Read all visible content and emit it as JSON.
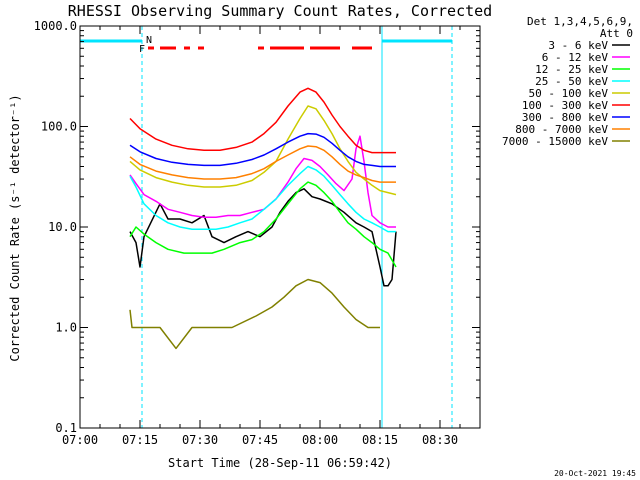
{
  "chart_data": {
    "type": "line",
    "title": "RHESSI Observing Summary Count Rates, Corrected",
    "xlabel": "Start Time (28-Sep-11 06:59:42)",
    "ylabel": "Corrected Count Rate (s⁻¹ detector⁻¹)",
    "x_unit": "minutes after 07:00",
    "xlim": [
      0,
      100
    ],
    "ylim": [
      0.1,
      1000
    ],
    "yscale": "log",
    "x_ticks": [
      {
        "t": 0,
        "label": "07:00"
      },
      {
        "t": 15,
        "label": "07:15"
      },
      {
        "t": 30,
        "label": "07:30"
      },
      {
        "t": 45,
        "label": "07:45"
      },
      {
        "t": 60,
        "label": "08:00"
      },
      {
        "t": 75,
        "label": "08:15"
      },
      {
        "t": 90,
        "label": "08:30"
      }
    ],
    "y_ticks": [
      {
        "v": 1000,
        "label": "1000.0"
      },
      {
        "v": 100,
        "label": "100.0"
      },
      {
        "v": 10,
        "label": "10.0"
      },
      {
        "v": 1,
        "label": "1.0"
      },
      {
        "v": 0.1,
        "label": "0.1"
      }
    ],
    "legend_header": [
      "Det 1,3,4,5,6,9,",
      "Att 0"
    ],
    "legend_position": "right",
    "series": [
      {
        "name": "3 - 6 keV",
        "color": "#000000",
        "points": [
          [
            12.5,
            9
          ],
          [
            14,
            7
          ],
          [
            15,
            4
          ],
          [
            16,
            8
          ],
          [
            20,
            17
          ],
          [
            22,
            12
          ],
          [
            25,
            12
          ],
          [
            28,
            11
          ],
          [
            31,
            13
          ],
          [
            33,
            8
          ],
          [
            36,
            7
          ],
          [
            39,
            8
          ],
          [
            42,
            9
          ],
          [
            45,
            8
          ],
          [
            48,
            10
          ],
          [
            50,
            14
          ],
          [
            52,
            18
          ],
          [
            54,
            22
          ],
          [
            56,
            24
          ],
          [
            58,
            20
          ],
          [
            60,
            19
          ],
          [
            63,
            17
          ],
          [
            66,
            14
          ],
          [
            69,
            11
          ],
          [
            71,
            10
          ],
          [
            73,
            9
          ],
          [
            75,
            4
          ],
          [
            76,
            2.6
          ],
          [
            77,
            2.6
          ],
          [
            78,
            3
          ],
          [
            79,
            9
          ]
        ]
      },
      {
        "name": "6 - 12 keV",
        "color": "#ff00ff",
        "points": [
          [
            12.5,
            33
          ],
          [
            14,
            27
          ],
          [
            16,
            21
          ],
          [
            19,
            18
          ],
          [
            22,
            15
          ],
          [
            25,
            14
          ],
          [
            28,
            13
          ],
          [
            31,
            12.5
          ],
          [
            34,
            12.5
          ],
          [
            37,
            13
          ],
          [
            40,
            13
          ],
          [
            43,
            14
          ],
          [
            46,
            15
          ],
          [
            49,
            19
          ],
          [
            52,
            28
          ],
          [
            54,
            38
          ],
          [
            56,
            48
          ],
          [
            58,
            46
          ],
          [
            60,
            40
          ],
          [
            62,
            33
          ],
          [
            64,
            27
          ],
          [
            66,
            23
          ],
          [
            68,
            30
          ],
          [
            69,
            60
          ],
          [
            70,
            80
          ],
          [
            71,
            45
          ],
          [
            72,
            22
          ],
          [
            73,
            13
          ],
          [
            75,
            11
          ],
          [
            77,
            10
          ],
          [
            79,
            10
          ]
        ]
      },
      {
        "name": "12 - 25 keV",
        "color": "#00ff00",
        "points": [
          [
            12.5,
            8
          ],
          [
            14,
            10
          ],
          [
            16,
            8.5
          ],
          [
            19,
            7
          ],
          [
            22,
            6
          ],
          [
            26,
            5.5
          ],
          [
            30,
            5.5
          ],
          [
            33,
            5.5
          ],
          [
            36,
            6
          ],
          [
            40,
            7
          ],
          [
            43,
            7.5
          ],
          [
            46,
            9
          ],
          [
            49,
            12
          ],
          [
            52,
            17
          ],
          [
            55,
            24
          ],
          [
            57,
            28
          ],
          [
            59,
            26
          ],
          [
            61,
            22
          ],
          [
            63,
            18
          ],
          [
            65,
            14
          ],
          [
            67,
            11
          ],
          [
            69,
            9.5
          ],
          [
            71,
            8
          ],
          [
            73,
            7
          ],
          [
            75,
            6
          ],
          [
            77,
            5.5
          ],
          [
            79,
            4
          ]
        ]
      },
      {
        "name": "25 - 50 keV",
        "color": "#00ffff",
        "points": [
          [
            12.5,
            32
          ],
          [
            14,
            25
          ],
          [
            16,
            17
          ],
          [
            19,
            13
          ],
          [
            22,
            11
          ],
          [
            25,
            10
          ],
          [
            28,
            9.5
          ],
          [
            31,
            9.5
          ],
          [
            34,
            9.5
          ],
          [
            37,
            10
          ],
          [
            40,
            11
          ],
          [
            43,
            12
          ],
          [
            46,
            15
          ],
          [
            49,
            19
          ],
          [
            52,
            26
          ],
          [
            55,
            34
          ],
          [
            57,
            40
          ],
          [
            59,
            37
          ],
          [
            61,
            32
          ],
          [
            63,
            26
          ],
          [
            65,
            21
          ],
          [
            67,
            17
          ],
          [
            69,
            14
          ],
          [
            71,
            12
          ],
          [
            73,
            11
          ],
          [
            75,
            10
          ],
          [
            77,
            9
          ],
          [
            79,
            9
          ]
        ]
      },
      {
        "name": "50 - 100 keV",
        "color": "#cccc00",
        "points": [
          [
            12.5,
            45
          ],
          [
            15,
            37
          ],
          [
            19,
            31
          ],
          [
            23,
            28
          ],
          [
            27,
            26
          ],
          [
            31,
            25
          ],
          [
            35,
            25
          ],
          [
            39,
            26
          ],
          [
            43,
            29
          ],
          [
            46,
            35
          ],
          [
            49,
            45
          ],
          [
            52,
            75
          ],
          [
            55,
            120
          ],
          [
            57,
            160
          ],
          [
            59,
            150
          ],
          [
            61,
            115
          ],
          [
            63,
            85
          ],
          [
            65,
            60
          ],
          [
            67,
            45
          ],
          [
            69,
            35
          ],
          [
            71,
            30
          ],
          [
            73,
            26
          ],
          [
            75,
            23
          ],
          [
            77,
            22
          ],
          [
            79,
            21
          ]
        ]
      },
      {
        "name": "100 - 300 keV",
        "color": "#ff0000",
        "points": [
          [
            12.5,
            120
          ],
          [
            15,
            95
          ],
          [
            19,
            75
          ],
          [
            23,
            65
          ],
          [
            27,
            60
          ],
          [
            31,
            58
          ],
          [
            35,
            58
          ],
          [
            39,
            62
          ],
          [
            43,
            70
          ],
          [
            46,
            85
          ],
          [
            49,
            110
          ],
          [
            52,
            160
          ],
          [
            55,
            220
          ],
          [
            57,
            240
          ],
          [
            59,
            220
          ],
          [
            61,
            175
          ],
          [
            63,
            130
          ],
          [
            65,
            100
          ],
          [
            67,
            80
          ],
          [
            69,
            65
          ],
          [
            71,
            58
          ],
          [
            73,
            55
          ],
          [
            75,
            55
          ],
          [
            77,
            55
          ],
          [
            79,
            55
          ]
        ]
      },
      {
        "name": "300 - 800 keV",
        "color": "#0000ff",
        "points": [
          [
            12.5,
            65
          ],
          [
            15,
            56
          ],
          [
            19,
            48
          ],
          [
            23,
            44
          ],
          [
            27,
            42
          ],
          [
            31,
            41
          ],
          [
            35,
            41
          ],
          [
            39,
            43
          ],
          [
            43,
            47
          ],
          [
            46,
            52
          ],
          [
            49,
            60
          ],
          [
            52,
            70
          ],
          [
            55,
            80
          ],
          [
            57,
            85
          ],
          [
            59,
            84
          ],
          [
            61,
            78
          ],
          [
            63,
            68
          ],
          [
            65,
            58
          ],
          [
            67,
            50
          ],
          [
            69,
            45
          ],
          [
            71,
            42
          ],
          [
            73,
            41
          ],
          [
            75,
            40
          ],
          [
            77,
            40
          ],
          [
            79,
            40
          ]
        ]
      },
      {
        "name": "800 - 7000 keV",
        "color": "#ff8000",
        "points": [
          [
            12.5,
            50
          ],
          [
            15,
            42
          ],
          [
            19,
            36
          ],
          [
            23,
            33
          ],
          [
            27,
            31
          ],
          [
            31,
            30
          ],
          [
            35,
            30
          ],
          [
            39,
            31
          ],
          [
            43,
            34
          ],
          [
            46,
            38
          ],
          [
            49,
            45
          ],
          [
            52,
            52
          ],
          [
            55,
            60
          ],
          [
            57,
            64
          ],
          [
            59,
            63
          ],
          [
            61,
            58
          ],
          [
            63,
            50
          ],
          [
            65,
            42
          ],
          [
            67,
            36
          ],
          [
            69,
            33
          ],
          [
            71,
            31
          ],
          [
            73,
            29
          ],
          [
            75,
            28
          ],
          [
            77,
            28
          ],
          [
            79,
            28
          ]
        ]
      },
      {
        "name": "7000 - 15000 keV",
        "color": "#808000",
        "points": [
          [
            12.5,
            1.5
          ],
          [
            13,
            1.0
          ],
          [
            14.5,
            1.0
          ],
          [
            20,
            1.0
          ],
          [
            24,
            0.62
          ],
          [
            28,
            1.0
          ],
          [
            38,
            1.0
          ],
          [
            44,
            1.3
          ],
          [
            48,
            1.6
          ],
          [
            51,
            2.0
          ],
          [
            54,
            2.6
          ],
          [
            57,
            3.0
          ],
          [
            60,
            2.8
          ],
          [
            63,
            2.2
          ],
          [
            66,
            1.6
          ],
          [
            69,
            1.2
          ],
          [
            72,
            1.0
          ],
          [
            75,
            1.0
          ]
        ]
      }
    ]
  },
  "overlays": {
    "n_marker_label": "N",
    "f_marker_label": "F",
    "cyan_bars": [
      [
        0,
        15.5
      ],
      [
        75.5,
        93
      ]
    ],
    "cyan_solid_lines": [
      0,
      75.5
    ],
    "cyan_dashed_lines": [
      15.5,
      93
    ],
    "red_flare_segments": [
      [
        17,
        18.5
      ],
      [
        20,
        24
      ],
      [
        26,
        27.5
      ],
      [
        29.5,
        31
      ],
      [
        44.5,
        46
      ],
      [
        47.5,
        56
      ],
      [
        57.5,
        65
      ],
      [
        68,
        73
      ]
    ],
    "colors": {
      "orbit": "#00e5ff",
      "flare": "#ff0000"
    }
  },
  "footer": {
    "timestamp": "20-Oct-2021 19:45"
  }
}
